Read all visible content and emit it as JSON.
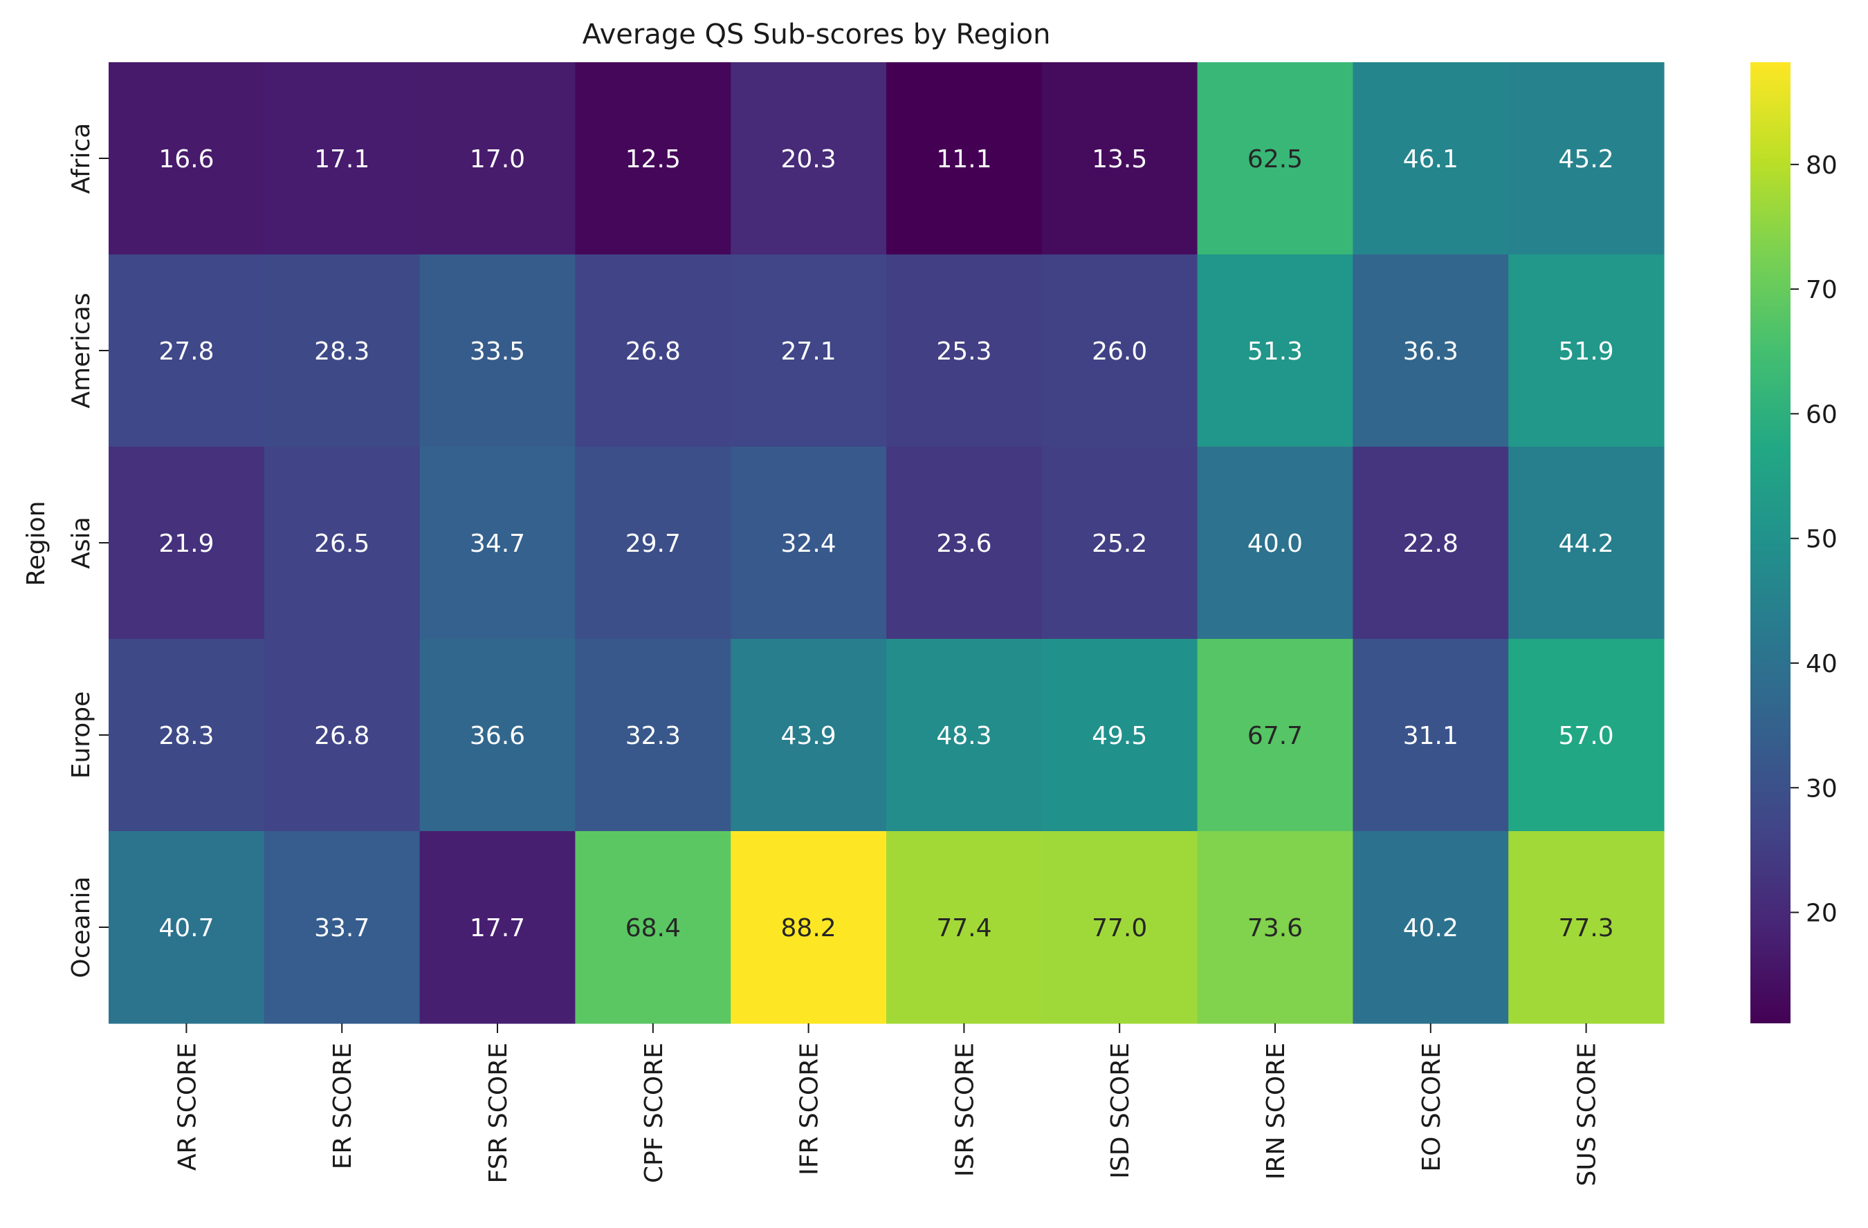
{
  "chart_data": {
    "type": "heatmap",
    "title": "Average QS Sub-scores by Region",
    "xlabel": "",
    "ylabel": "Region",
    "x_categories": [
      "AR SCORE",
      "ER SCORE",
      "FSR SCORE",
      "CPF SCORE",
      "IFR SCORE",
      "ISR SCORE",
      "ISD SCORE",
      "IRN SCORE",
      "EO SCORE",
      "SUS SCORE"
    ],
    "y_categories": [
      "Africa",
      "Americas",
      "Asia",
      "Europe",
      "Oceania"
    ],
    "values": [
      [
        16.6,
        17.1,
        17.0,
        12.5,
        20.3,
        11.1,
        13.5,
        62.5,
        46.1,
        45.2
      ],
      [
        27.8,
        28.3,
        33.5,
        26.8,
        27.1,
        25.3,
        26.0,
        51.3,
        36.3,
        51.9
      ],
      [
        21.9,
        26.5,
        34.7,
        29.7,
        32.4,
        23.6,
        25.2,
        40.0,
        22.8,
        44.2
      ],
      [
        28.3,
        26.8,
        36.6,
        32.3,
        43.9,
        48.3,
        49.5,
        67.7,
        31.1,
        57.0
      ],
      [
        40.7,
        33.7,
        17.7,
        68.4,
        88.2,
        77.4,
        77.0,
        73.6,
        40.2,
        77.3
      ]
    ],
    "annotations": true,
    "value_format": "0.1f",
    "colormap": "viridis",
    "color_range": [
      11.1,
      88.2
    ],
    "colorbar_ticks": [
      20,
      30,
      40,
      50,
      60,
      70,
      80
    ],
    "grid": false
  }
}
